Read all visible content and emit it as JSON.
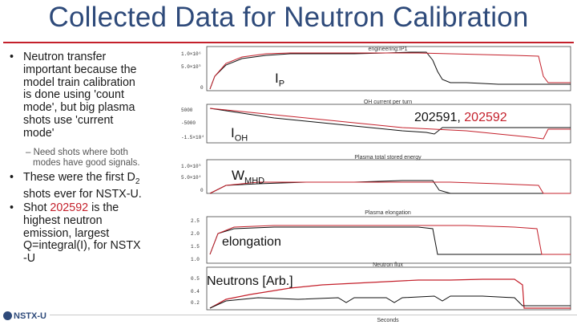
{
  "title": "Collected Data for Neutron Calibration",
  "bullets": {
    "b1_lines": [
      "Neutron transfer",
      "important because the",
      "model train calibration",
      "is done using 'count",
      "mode', but big plasma",
      "shots use 'current",
      "mode'"
    ],
    "sub1_lines": [
      "– Need shots where both",
      "modes have good signals."
    ],
    "b2_line1_a": "These were the first D",
    "b2_line1_sub": "2",
    "b2_line2": "shots ever for NSTX-U.",
    "b3_a": "Shot ",
    "b3_red": "202592",
    "b3_b": " is the",
    "b3_lines": [
      "highest neutron",
      "emission, largest",
      "Q=integral(I), for NSTX",
      "-U"
    ]
  },
  "plot": {
    "shots_label_a": "202591, ",
    "shots_label_b": "202592",
    "label_ip": "I",
    "label_ip_sub": "P",
    "label_ioh": "I",
    "label_ioh_sub": "OH",
    "label_wmhd": "W",
    "label_wmhd_sub": "MHD",
    "label_elong": "elongation",
    "label_neut": "Neutrons [Arb.]",
    "panel_titles": [
      "engineering:IP1",
      "OH current per turn",
      "Plasma total stored energy",
      "Plasma elongation",
      "Neutron flux"
    ],
    "xlabel": "Seconds"
  },
  "footer": {
    "logo": "NSTX-U"
  },
  "colors": {
    "title": "#2e4a7a",
    "accent": "#c4202b",
    "trace_a": "#c4202b",
    "trace_b": "#111111"
  }
}
